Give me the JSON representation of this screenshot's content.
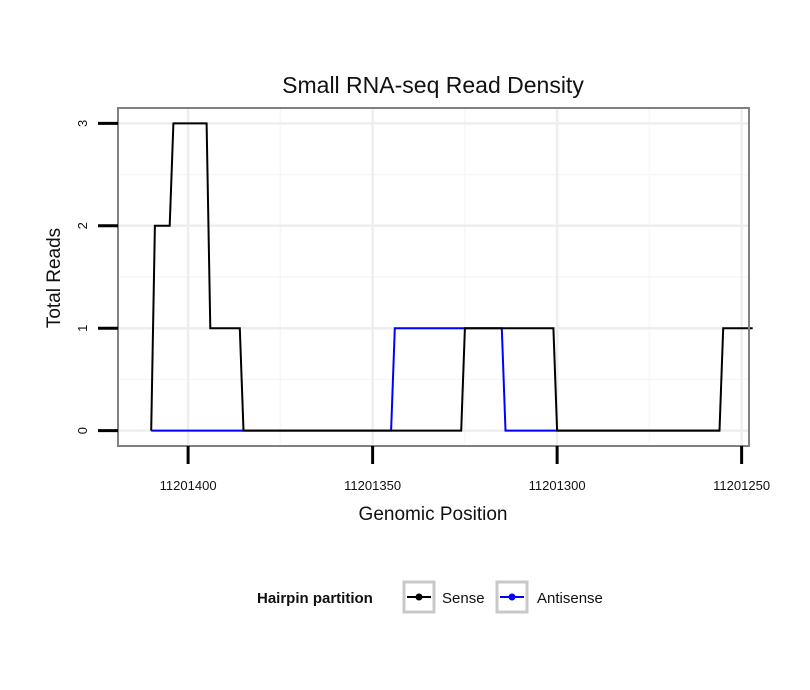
{
  "chart_data": {
    "type": "line",
    "title": "Small RNA-seq Read Density",
    "xlabel": "Genomic Position",
    "ylabel": "Total Reads",
    "xlim": [
      11201419,
      11201248
    ],
    "x_reversed": true,
    "ylim": [
      -0.15,
      3.15
    ],
    "xticks": [
      {
        "value": 11201400,
        "label": "11201400"
      },
      {
        "value": 11201350,
        "label": "11201350"
      },
      {
        "value": 11201300,
        "label": "11201300"
      },
      {
        "value": 11201250,
        "label": "11201250"
      }
    ],
    "yticks": [
      {
        "value": 0,
        "label": "0"
      },
      {
        "value": 1,
        "label": "1"
      },
      {
        "value": 2,
        "label": "2"
      },
      {
        "value": 3,
        "label": "3"
      }
    ],
    "grid": true,
    "legend": {
      "title": "Hairpin partition",
      "position": "bottom",
      "entries": [
        "Sense",
        "Antisense"
      ]
    },
    "series": [
      {
        "name": "Sense",
        "color": "#000000",
        "x": [
          11201410,
          11201409,
          11201405,
          11201404,
          11201395,
          11201394,
          11201386,
          11201385,
          11201326,
          11201325,
          11201301,
          11201300,
          11201256,
          11201255,
          11201247
        ],
        "y": [
          0,
          2,
          2,
          3,
          3,
          1,
          1,
          0,
          0,
          1,
          1,
          0,
          0,
          1,
          1
        ]
      },
      {
        "name": "Antisense",
        "color": "#0000ff",
        "x": [
          11201410,
          11201345,
          11201344,
          11201315,
          11201314,
          11201256
        ],
        "y": [
          0,
          0,
          1,
          1,
          0,
          0
        ]
      }
    ]
  }
}
